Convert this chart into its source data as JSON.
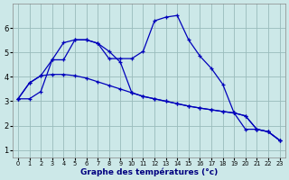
{
  "x": [
    0,
    1,
    2,
    3,
    4,
    5,
    6,
    7,
    8,
    9,
    10,
    11,
    12,
    13,
    14,
    15,
    16,
    17,
    18,
    19,
    20,
    21,
    22,
    23
  ],
  "curve_diag": [
    3.1,
    3.75,
    4.05,
    4.1,
    4.1,
    4.05,
    3.95,
    3.8,
    3.65,
    3.5,
    3.35,
    3.2,
    3.1,
    3.0,
    2.9,
    2.8,
    2.72,
    2.65,
    2.58,
    2.52,
    2.4,
    1.85,
    1.75,
    1.4
  ],
  "curve_main": [
    3.1,
    3.75,
    4.05,
    4.7,
    5.4,
    5.52,
    5.52,
    5.38,
    4.75,
    4.75,
    4.75,
    5.05,
    6.3,
    6.45,
    6.52,
    5.52,
    4.85,
    4.35,
    3.7,
    2.52,
    1.85,
    1.85,
    1.75,
    1.4
  ],
  "curve_cross": [
    3.1,
    3.1,
    3.4,
    4.7,
    4.7,
    5.52,
    5.52,
    5.38,
    5.05,
    4.6,
    3.35,
    3.2,
    3.1,
    3.0,
    2.9,
    2.8,
    2.72,
    2.65,
    2.58,
    2.52,
    2.4,
    1.85,
    1.75,
    1.4
  ],
  "bg_color": "#cce8e8",
  "grid_color": "#99bbbb",
  "line_color": "#0000bb",
  "xlabel": "Graphe des températures (°c)",
  "xlim": [
    -0.5,
    23.5
  ],
  "ylim": [
    0.7,
    7.0
  ],
  "yticks": [
    1,
    2,
    3,
    4,
    5,
    6
  ],
  "xticks": [
    0,
    1,
    2,
    3,
    4,
    5,
    6,
    7,
    8,
    9,
    10,
    11,
    12,
    13,
    14,
    15,
    16,
    17,
    18,
    19,
    20,
    21,
    22,
    23
  ]
}
